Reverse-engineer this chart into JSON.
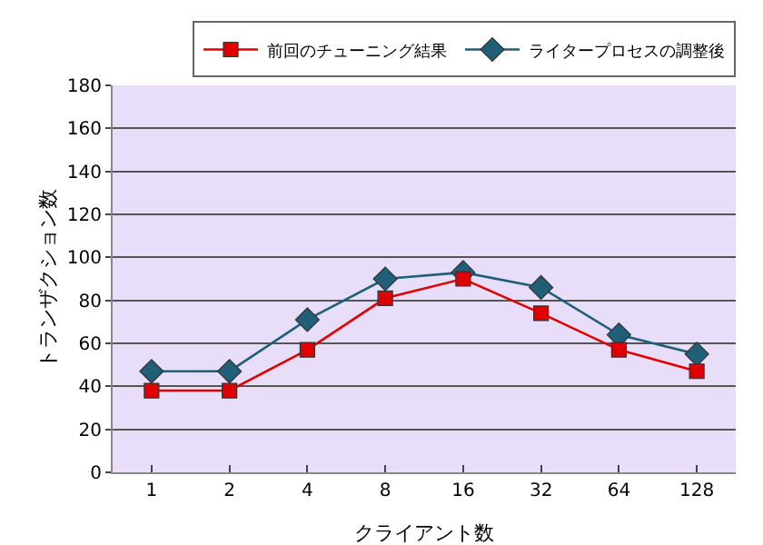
{
  "chart_data": {
    "type": "line",
    "xlabel": "クライアント数",
    "ylabel": "トランザクション数",
    "categories": [
      "1",
      "2",
      "4",
      "8",
      "16",
      "32",
      "64",
      "128"
    ],
    "series": [
      {
        "name": "前回のチューニング結果",
        "color": "#e00000",
        "marker": "square",
        "values": [
          38,
          38,
          57,
          81,
          90,
          74,
          57,
          47
        ]
      },
      {
        "name": "ライタープロセスの調整後",
        "color": "#1f5f78",
        "marker": "diamond",
        "values": [
          47,
          47,
          71,
          90,
          93,
          86,
          64,
          55
        ]
      }
    ],
    "ylim": [
      0,
      180
    ],
    "yticks": [
      0,
      20,
      40,
      60,
      80,
      100,
      120,
      140,
      160,
      180
    ],
    "grid": "y",
    "legend": "top right"
  }
}
